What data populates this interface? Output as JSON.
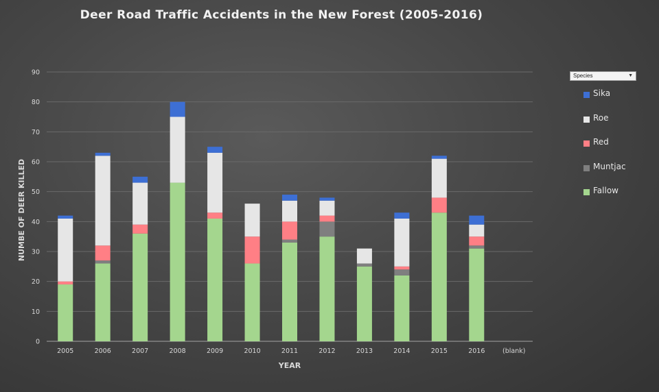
{
  "chart_data": {
    "type": "bar",
    "stacked": true,
    "title": "Deer Road Traffic Accidents in the New Forest (2005-2016)",
    "xlabel": "YEAR",
    "ylabel": "NUMBE OF DEER KILLED",
    "ylim": [
      0,
      90
    ],
    "yticks": [
      0,
      10,
      20,
      30,
      40,
      50,
      60,
      70,
      80,
      90
    ],
    "grid": true,
    "legend_position": "right",
    "categories": [
      "2005",
      "2006",
      "2007",
      "2008",
      "2009",
      "2010",
      "2011",
      "2012",
      "2013",
      "2014",
      "2015",
      "2016",
      "(blank)"
    ],
    "series": [
      {
        "name": "Fallow",
        "color": "#a4d68e",
        "values": [
          19,
          26,
          36,
          53,
          41,
          26,
          33,
          35,
          25,
          22,
          43,
          31,
          0
        ]
      },
      {
        "name": "Muntjac",
        "color": "#7f7f7f",
        "values": [
          0,
          1,
          0,
          0,
          0,
          0,
          1,
          5,
          1,
          2,
          0,
          1,
          0
        ]
      },
      {
        "name": "Red",
        "color": "#ff7f85",
        "values": [
          1,
          5,
          3,
          0,
          2,
          9,
          6,
          2,
          0,
          1,
          5,
          3,
          0
        ]
      },
      {
        "name": "Roe",
        "color": "#e6e6e6",
        "values": [
          21,
          30,
          14,
          22,
          20,
          11,
          7,
          5,
          5,
          16,
          13,
          4,
          0
        ]
      },
      {
        "name": "Sika",
        "color": "#3d6fd4",
        "values": [
          1,
          1,
          2,
          5,
          2,
          0,
          2,
          1,
          0,
          2,
          1,
          3,
          0
        ]
      }
    ]
  },
  "filter": {
    "label": "Species",
    "arrow": "▼"
  },
  "legend": {
    "items": [
      {
        "name": "Sika",
        "color": "#3d6fd4"
      },
      {
        "name": "Roe",
        "color": "#e6e6e6"
      },
      {
        "name": "Red",
        "color": "#ff7f85"
      },
      {
        "name": "Muntjac",
        "color": "#7f7f7f"
      },
      {
        "name": "Fallow",
        "color": "#a4d68e"
      }
    ]
  }
}
